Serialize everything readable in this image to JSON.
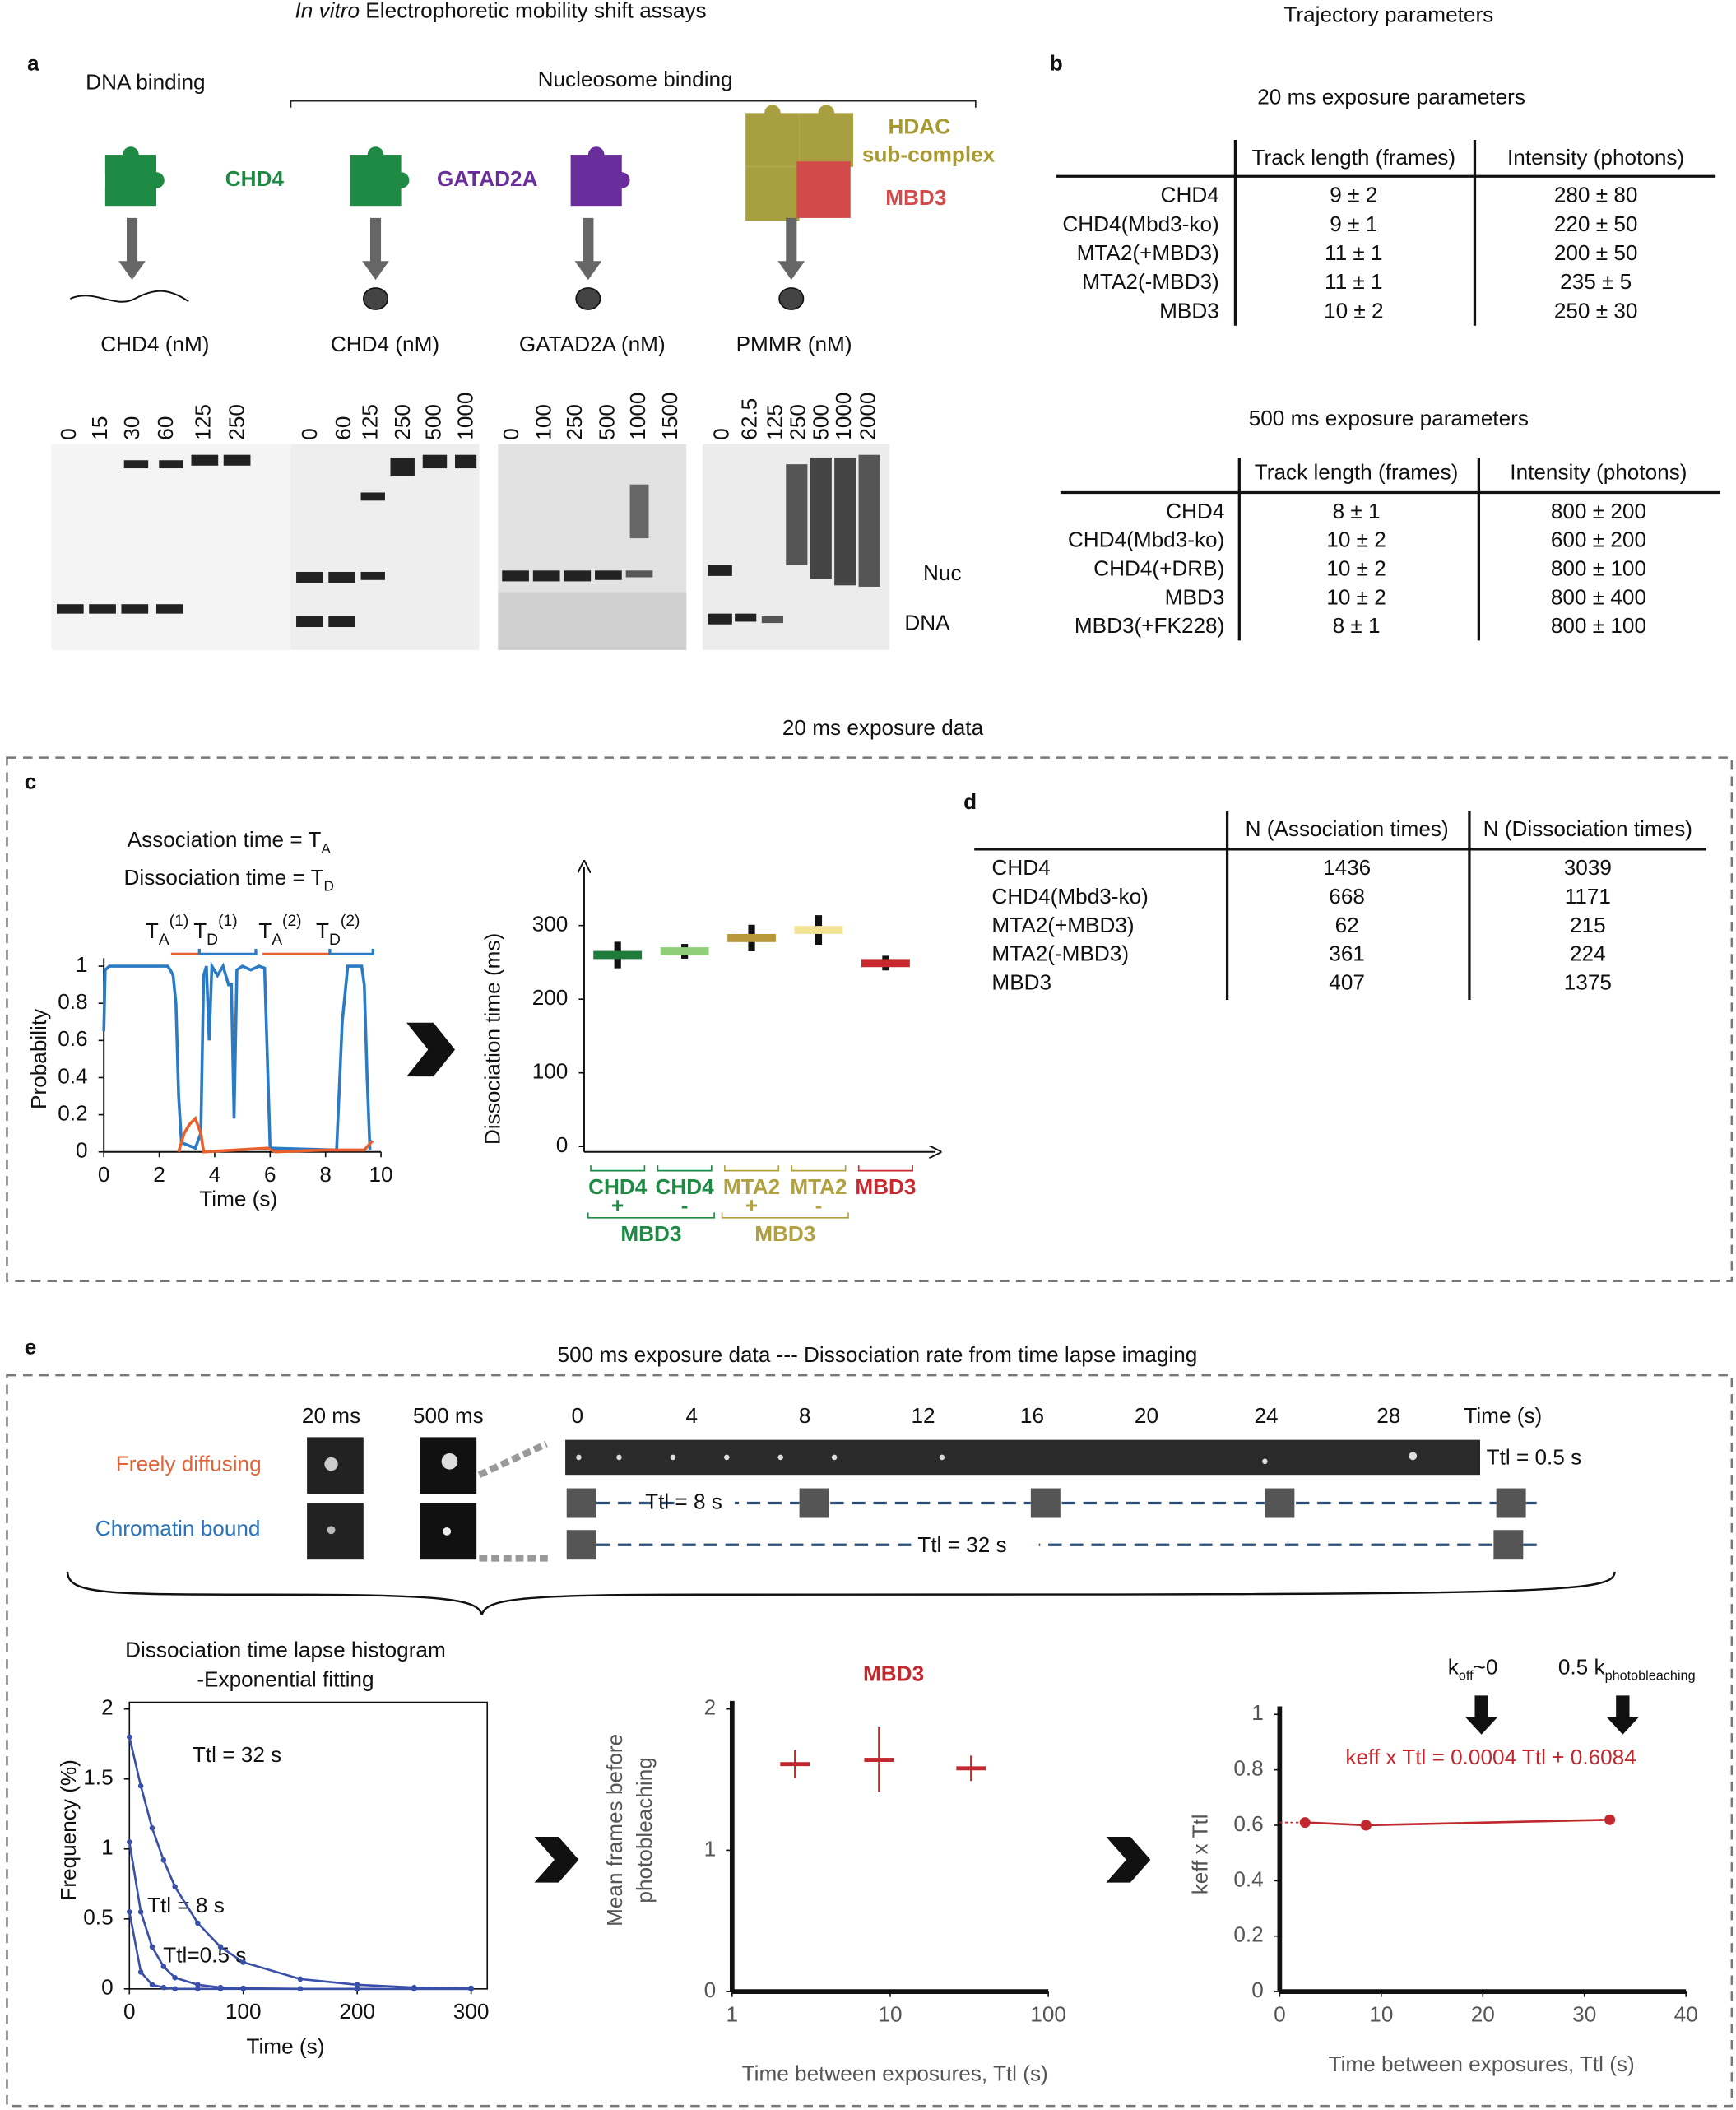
{
  "header": {
    "left_title_italic": "In vitro",
    "left_title": " Electrophoretic mobility shift assays",
    "right_title": "Trajectory parameters"
  },
  "panel_a": {
    "letter": "a",
    "dna_binding": "DNA binding",
    "nucleosome_binding": "Nucleosome binding",
    "proteins": {
      "chd4": "CHD4",
      "gatad2a": "GATAD2A",
      "hdac": "HDAC",
      "subcomplex": "sub-complex",
      "mbd3": "MBD3"
    },
    "gels": [
      {
        "label": "CHD4 (nM)",
        "lanes": [
          "0",
          "15",
          "30",
          "60",
          "125",
          "250"
        ]
      },
      {
        "label": "CHD4 (nM)",
        "lanes": [
          "0",
          "60",
          "125",
          "250",
          "500",
          "1000"
        ]
      },
      {
        "label": "GATAD2A (nM)",
        "lanes": [
          "0",
          "100",
          "250",
          "500",
          "1000",
          "1500"
        ]
      },
      {
        "label": "PMMR (nM)",
        "lanes": [
          "0",
          "62.5",
          "125",
          "250",
          "500",
          "1000",
          "2000"
        ]
      }
    ],
    "nuc": "Nuc",
    "dna": "DNA"
  },
  "panel_b": {
    "letter": "b",
    "tables": [
      {
        "title": "20 ms exposure parameters",
        "columns": [
          "Track length (frames)",
          "Intensity (photons)"
        ],
        "rows": [
          [
            "CHD4",
            "9 ± 2",
            "280 ± 80"
          ],
          [
            "CHD4(Mbd3-ko)",
            "9 ± 1",
            "220 ± 50"
          ],
          [
            "MTA2(+MBD3)",
            "11 ± 1",
            "200 ± 50"
          ],
          [
            "MTA2(-MBD3)",
            "11 ± 1",
            "235 ± 5"
          ],
          [
            "MBD3",
            "10 ± 2",
            "250 ± 30"
          ]
        ]
      },
      {
        "title": "500 ms exposure parameters",
        "columns": [
          "Track length (frames)",
          "Intensity (photons)"
        ],
        "rows": [
          [
            "CHD4",
            "8 ± 1",
            "800 ± 200"
          ],
          [
            "CHD4(Mbd3-ko)",
            "10 ± 2",
            "600 ± 200"
          ],
          [
            "CHD4(+DRB)",
            "10 ± 2",
            "800 ± 100"
          ],
          [
            "MBD3",
            "10 ± 2",
            "800 ± 400"
          ],
          [
            "MBD3(+FK228)",
            "8 ± 1",
            "800 ± 100"
          ]
        ]
      }
    ]
  },
  "panel_c": {
    "title": "20 ms exposure data",
    "letter": "c",
    "definitions": [
      {
        "text": "Association time = T",
        "sub": "A"
      },
      {
        "text": "Dissociation time = T",
        "sub": "D"
      }
    ]
  },
  "panel_d": {
    "letter": "d",
    "table": {
      "columns": [
        "N (Association times)",
        "N (Dissociation times)"
      ],
      "rows": [
        [
          "CHD4",
          "1436",
          "3039"
        ],
        [
          "CHD4(Mbd3-ko)",
          "668",
          "1171"
        ],
        [
          "MTA2(+MBD3)",
          "62",
          "215"
        ],
        [
          "MTA2(-MBD3)",
          "361",
          "224"
        ],
        [
          "MBD3",
          "407",
          "1375"
        ]
      ]
    }
  },
  "panel_e": {
    "letter": "e",
    "title": "500 ms exposure data --- Dissociation rate from time lapse imaging",
    "exposures": [
      "20 ms",
      "500 ms"
    ],
    "states": [
      "Freely diffusing",
      "Chromatin bound"
    ],
    "times": [
      "0",
      "4",
      "8",
      "12",
      "16",
      "20",
      "24",
      "28"
    ],
    "time_unit": "Time (s)",
    "ttl_labels": [
      "Ttl = 0.5 s",
      "Ttl = 8 s",
      "Ttl = 32 s"
    ]
  },
  "chart_data": [
    {
      "type": "line",
      "xlabel": "Time (s)",
      "ylabel": "Probability",
      "xlim": [
        0,
        10
      ],
      "xticks": [
        0,
        2,
        4,
        6,
        8,
        10
      ],
      "ylim": [
        0,
        1
      ],
      "yticks": [
        0,
        0.2,
        0.4,
        0.6,
        0.8,
        1
      ],
      "annotations": [
        {
          "text": "T",
          "sub": "A",
          "sup": "(1)"
        },
        {
          "text": "T",
          "sub": "D",
          "sup": "(1)"
        },
        {
          "text": "T",
          "sub": "A",
          "sup": "(2)"
        },
        {
          "text": "T",
          "sub": "D",
          "sup": "(2)"
        }
      ],
      "series": [
        {
          "color": "#2a7bc4",
          "x": [
            0,
            0.05,
            0.2,
            0.5,
            2.3,
            2.4,
            2.5,
            2.6,
            2.7,
            2.8,
            3.3,
            3.5,
            3.6,
            3.7,
            3.8,
            3.9,
            4.1,
            4.3,
            4.5,
            4.6,
            4.7,
            4.8,
            5.0,
            5.3,
            5.6,
            5.8,
            6.0,
            8.4,
            8.6,
            8.8,
            9.3,
            9.4,
            9.5,
            9.6
          ],
          "values": [
            0.65,
            0.98,
            1,
            1,
            1,
            0.98,
            0.95,
            0.8,
            0.3,
            0.05,
            0.02,
            0.1,
            0.95,
            1,
            0.6,
            1,
            0.95,
            1,
            0.9,
            0.9,
            0.18,
            0.98,
            1,
            0.98,
            1,
            0.99,
            0.02,
            0.01,
            0.7,
            1,
            1,
            0.9,
            0.4,
            0.01
          ]
        },
        {
          "color": "#e8602c",
          "x": [
            2.7,
            2.9,
            3.1,
            3.3,
            3.5,
            3.6,
            5.9,
            6.2,
            8,
            9.4,
            9.7
          ],
          "values": [
            0,
            0.1,
            0.15,
            0.18,
            0.1,
            0,
            0.02,
            0,
            0.01,
            0.01,
            0.06
          ]
        }
      ]
    },
    {
      "type": "errorbar",
      "ylabel": "Dissociation time (ms)",
      "categories": [
        "CHD4",
        "CHD4",
        "MTA2",
        "MTA2",
        "MBD3"
      ],
      "values": [
        260,
        265,
        283,
        294,
        249
      ],
      "errors": [
        18,
        10,
        18,
        20,
        10
      ],
      "colors": [
        "#1e7b3a",
        "#8fcf7a",
        "#b8983a",
        "#f2e394",
        "#c8282e"
      ],
      "label_colors": [
        "#1e8a44",
        "#1e8a44",
        "#b0a040",
        "#b0a040",
        "#c8282e"
      ],
      "groups": [
        {
          "name": "MBD3",
          "signs": [
            "+",
            "-"
          ],
          "color": "#1e8a44"
        },
        {
          "name": "MBD3",
          "signs": [
            "+",
            "-"
          ],
          "color": "#b0a040"
        }
      ],
      "ylim": [
        0,
        380
      ],
      "yticks": [
        0,
        100,
        200,
        300
      ]
    },
    {
      "type": "line",
      "title": [
        "Dissociation time lapse histogram",
        "-Exponential fitting"
      ],
      "xlabel": "Time (s)",
      "ylabel": "Frequency (%)",
      "xlim": [
        0,
        300
      ],
      "xticks": [
        0,
        100,
        200,
        300
      ],
      "ylim": [
        0,
        2
      ],
      "yticks": [
        0,
        0.5,
        1,
        1.5,
        2
      ],
      "x": [
        0,
        10,
        20,
        30,
        40,
        60,
        80,
        100,
        150,
        200,
        250,
        300
      ],
      "annotations": [
        {
          "text": "Ttl = 32 s"
        },
        {
          "text": "Ttl = 8 s"
        },
        {
          "text": "Ttl=0.5 s"
        }
      ],
      "series": [
        {
          "color": "#3a4fa8",
          "values": [
            1.8,
            1.45,
            1.15,
            0.92,
            0.73,
            0.47,
            0.3,
            0.19,
            0.07,
            0.03,
            0.01,
            0.005
          ]
        },
        {
          "color": "#3a4fa8",
          "values": [
            1.05,
            0.55,
            0.3,
            0.16,
            0.08,
            0.03,
            0.01,
            0.005,
            0,
            0,
            0,
            0
          ]
        },
        {
          "color": "#3a4fa8",
          "values": [
            0.55,
            0.12,
            0.03,
            0.01,
            0,
            0,
            0,
            0,
            0,
            0,
            0,
            0
          ]
        }
      ]
    },
    {
      "type": "errorbar",
      "title": [
        "MBD3"
      ],
      "xlabel": "Time between exposures, Ttl (s)",
      "ylabel": [
        "Mean frames before",
        "photobleaching"
      ],
      "log_x": true,
      "xlim": [
        1,
        100
      ],
      "xticks": [
        1,
        10,
        100
      ],
      "ylim": [
        0,
        2
      ],
      "yticks": [
        0,
        1,
        2
      ],
      "x": [
        2.5,
        8.5,
        32.5
      ],
      "values": [
        1.61,
        1.64,
        1.58
      ],
      "errors": [
        0.1,
        0.23,
        0.09
      ],
      "color": "#c0282e"
    },
    {
      "type": "line",
      "xlabel": "Time between exposures, Ttl (s)",
      "ylabel": "keff x Ttl",
      "xlim": [
        0,
        40
      ],
      "xticks": [
        0,
        10,
        20,
        30,
        40
      ],
      "ylim": [
        0,
        1
      ],
      "yticks": [
        0,
        0.2,
        0.4,
        0.6,
        0.8,
        1
      ],
      "x": [
        2.5,
        8.5,
        32.5
      ],
      "annotations": [
        {
          "text": "keff x Ttl = 0.0004 Ttl + 0.6084",
          "color": "#c0282e"
        },
        {
          "text": "k",
          "sub": "off",
          "after": "~0"
        },
        {
          "text": "0.5 k",
          "sub": "photobleaching"
        }
      ],
      "series": [
        {
          "color": "#c0282e",
          "values": [
            0.61,
            0.6,
            0.62
          ]
        }
      ]
    }
  ]
}
